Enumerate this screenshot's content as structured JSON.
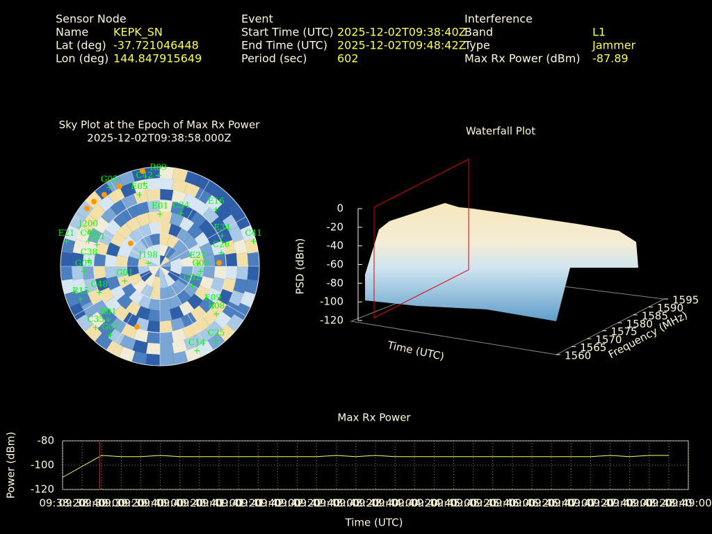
{
  "header": {
    "columns": [
      {
        "title": "Sensor Node",
        "rows": [
          {
            "label": "Name",
            "value": "KEPK_SN"
          },
          {
            "label": "Lat (deg)",
            "value": "-37.721046448"
          },
          {
            "label": "Lon (deg)",
            "value": "144.847915649"
          }
        ]
      },
      {
        "title": "Event",
        "rows": [
          {
            "label": "Start Time (UTC)",
            "value": "2025-12-02T09:38:40Z"
          },
          {
            "label": "End Time (UTC)",
            "value": "2025-12-02T09:48:42Z"
          },
          {
            "label": "Period (sec)",
            "value": "602"
          }
        ]
      },
      {
        "title": "Interference",
        "rows": [
          {
            "label": "Band",
            "value": "L1"
          },
          {
            "label": "Type",
            "value": "Jammer"
          },
          {
            "label": "Max Rx Power (dBm)",
            "value": "-87.89"
          }
        ]
      }
    ]
  },
  "sky_plot": {
    "title": "Sky Plot at the Epoch of Max Rx Power",
    "subtitle": "2025-12-02T09:38:58.000Z",
    "satellites": [
      {
        "name": "R09",
        "az": 359,
        "el": 3
      },
      {
        "name": "G05",
        "az": 329,
        "el": 1
      },
      {
        "name": "E05",
        "az": 345,
        "el": 18
      },
      {
        "name": "C42",
        "az": 350,
        "el": 9
      },
      {
        "name": "E16",
        "az": 42,
        "el": 14
      },
      {
        "name": "C34",
        "az": 20,
        "el": 34
      },
      {
        "name": "E34",
        "az": 60,
        "el": 25
      },
      {
        "name": "C41",
        "az": 72,
        "el": 1
      },
      {
        "name": "C26",
        "az": 73,
        "el": 32
      },
      {
        "name": "E01",
        "az": 0,
        "el": 38
      },
      {
        "name": "J200",
        "az": 299,
        "el": 16
      },
      {
        "name": "C45",
        "az": 293,
        "el": 20
      },
      {
        "name": "E21",
        "az": 288,
        "el": 1
      },
      {
        "name": "R21",
        "az": 293,
        "el": 28
      },
      {
        "name": "C38",
        "az": 279,
        "el": 25
      },
      {
        "name": "G09",
        "az": 270,
        "el": 21
      },
      {
        "name": "J198",
        "az": 305,
        "el": 77
      },
      {
        "name": "E27",
        "az": 78,
        "el": 55
      },
      {
        "name": "G02",
        "az": 90,
        "el": 53
      },
      {
        "name": "G32",
        "az": 114,
        "el": 58
      },
      {
        "name": "E09",
        "az": 123,
        "el": 33
      },
      {
        "name": "E08",
        "az": 127,
        "el": 26
      },
      {
        "name": "C48",
        "az": 251,
        "el": 32
      },
      {
        "name": "R15",
        "az": 251,
        "el": 14
      },
      {
        "name": "R01",
        "az": 227,
        "el": 26
      },
      {
        "name": "C35",
        "az": 229,
        "el": 13
      },
      {
        "name": "G07",
        "az": 218,
        "el": 17
      },
      {
        "name": "C14",
        "az": 155,
        "el": 11
      },
      {
        "name": "C25",
        "az": 141,
        "el": 9
      },
      {
        "name": "G01",
        "az": 255,
        "el": 57
      }
    ]
  },
  "waterfall": {
    "title": "Waterfall Plot",
    "z_label": "PSD (dBm)",
    "x_label": "Time (UTC)",
    "y_label": "Frequency (MHz)",
    "zlim": [
      -120,
      0
    ],
    "zticks": [
      0,
      -20,
      -40,
      -60,
      -80,
      -100,
      -120
    ],
    "ylim": [
      1560,
      1595
    ],
    "yticks": [
      1560,
      1565,
      1570,
      1575,
      1580,
      1585,
      1590,
      1595
    ]
  },
  "chart_data": {
    "type": "line",
    "title": "Max Rx Power",
    "x_label": "Time (UTC)",
    "y_label": "Power (dBm)",
    "x": [
      "09:38:20",
      "09:38:40",
      "09:39:00",
      "09:39:20",
      "09:39:40",
      "09:40:00",
      "09:40:20",
      "09:40:40",
      "09:41:00",
      "09:41:20",
      "09:41:40",
      "09:42:00",
      "09:42:20",
      "09:42:40",
      "09:43:00",
      "09:43:20",
      "09:43:40",
      "09:44:00",
      "09:44:20",
      "09:44:40",
      "09:45:00",
      "09:45:20",
      "09:45:40",
      "09:46:00",
      "09:46:20",
      "09:46:40",
      "09:47:00",
      "09:47:20",
      "09:47:40",
      "09:48:00",
      "09:48:20",
      "09:48:40"
    ],
    "values": [
      -110,
      -101,
      -92,
      -93,
      -93,
      -92,
      -93,
      -93,
      -93,
      -93,
      -93,
      -93,
      -93,
      -93,
      -92,
      -93,
      -92,
      -93,
      -93,
      -93,
      -93,
      -93,
      -93,
      -93,
      -93,
      -93,
      -93,
      -93,
      -92,
      -93,
      -92,
      -92
    ],
    "color": "#ffff60",
    "xlim": [
      "09:38:20",
      "09:49:00"
    ],
    "xticks": [
      "09:38:20",
      "09:38:40",
      "09:39:00",
      "09:39:20",
      "09:39:40",
      "09:40:00",
      "09:40:20",
      "09:40:40",
      "09:41:00",
      "09:41:20",
      "09:41:40",
      "09:42:00",
      "09:42:20",
      "09:42:40",
      "09:43:00",
      "09:43:20",
      "09:43:40",
      "09:44:00",
      "09:44:20",
      "09:44:40",
      "09:45:00",
      "09:45:20",
      "09:45:40",
      "09:46:00",
      "09:46:20",
      "09:46:40",
      "09:47:00",
      "09:47:20",
      "09:47:40",
      "09:48:00",
      "09:48:20",
      "09:48:40",
      "09:49:00"
    ],
    "ylim": [
      -120,
      -80
    ],
    "yticks": [
      -80,
      -100,
      -120
    ],
    "grid": true
  }
}
